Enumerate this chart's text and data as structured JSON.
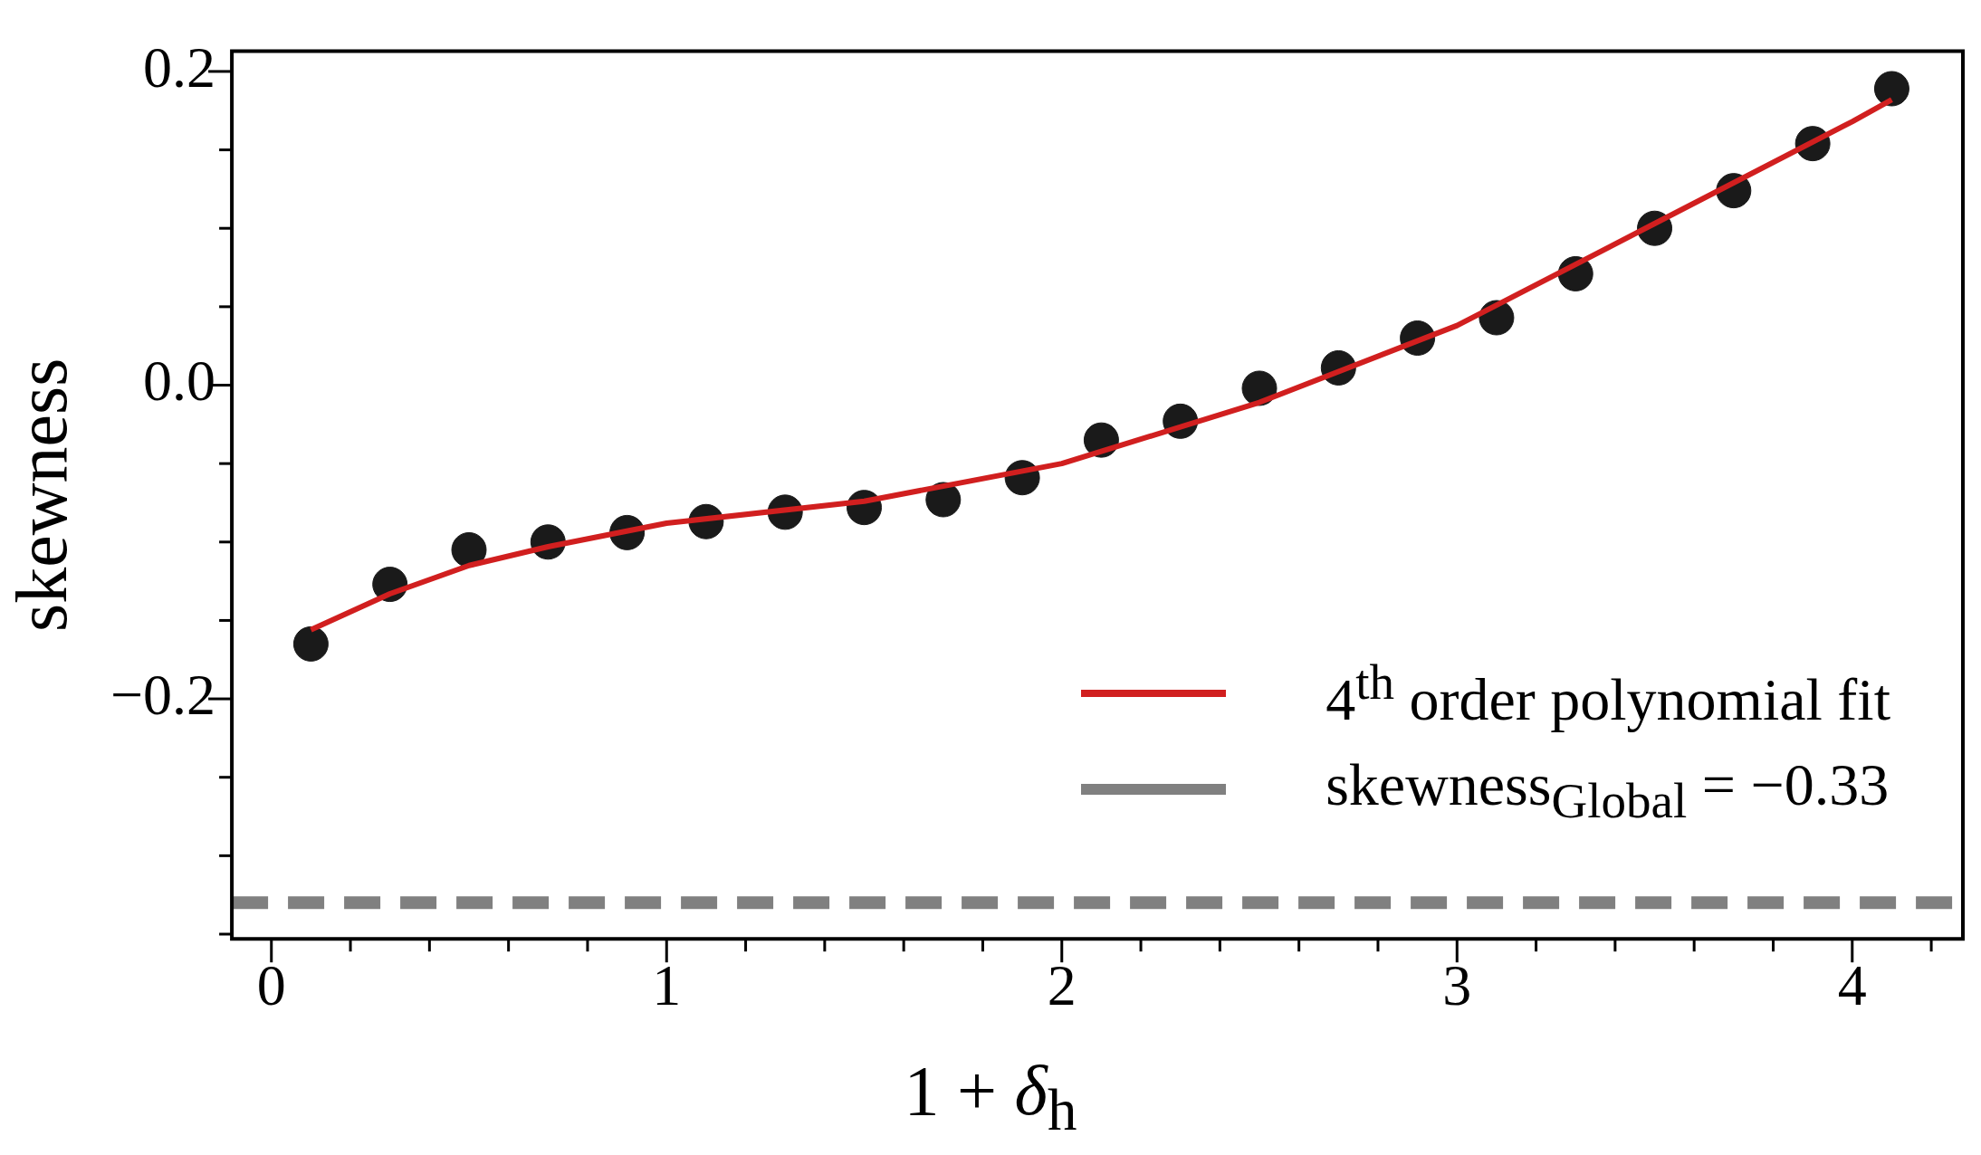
{
  "chart_data": {
    "type": "scatter",
    "xlabel": "1 + δ$_{h}$",
    "ylabel": "skewness",
    "xlim": [
      -0.1,
      4.28
    ],
    "ylim": [
      -0.353,
      0.213
    ],
    "xticks": [
      0,
      {
        "value": 0.2,
        "label": null
      },
      {
        "value": 0.4,
        "label": null
      },
      {
        "value": 0.6,
        "label": null
      },
      {
        "value": 0.8,
        "label": null
      },
      1,
      {
        "value": 1.2,
        "label": null
      },
      {
        "value": 1.4,
        "label": null
      },
      {
        "value": 1.6,
        "label": null
      },
      {
        "value": 1.8,
        "label": null
      },
      2,
      {
        "value": 2.2,
        "label": null
      },
      {
        "value": 2.4,
        "label": null
      },
      {
        "value": 2.6,
        "label": null
      },
      {
        "value": 2.8,
        "label": null
      },
      3,
      {
        "value": 3.2,
        "label": null
      },
      {
        "value": 3.4,
        "label": null
      },
      {
        "value": 3.6,
        "label": null
      },
      {
        "value": 3.8,
        "label": null
      },
      4,
      {
        "value": 4.2,
        "label": null
      }
    ],
    "yticks": [
      {
        "value": -0.35,
        "label": null
      },
      {
        "value": -0.3,
        "label": null
      },
      {
        "value": -0.25,
        "label": null
      },
      {
        "value": -0.2,
        "label": "−0.2"
      },
      {
        "value": -0.15,
        "label": null
      },
      {
        "value": -0.1,
        "label": null
      },
      {
        "value": -0.05,
        "label": null
      },
      {
        "value": 0,
        "label": "0.0"
      },
      {
        "value": 0.05,
        "label": null
      },
      {
        "value": 0.1,
        "label": null
      },
      {
        "value": 0.15,
        "label": null
      },
      {
        "value": 0.2,
        "label": "0.2"
      }
    ],
    "marker": "circle",
    "grid": false,
    "legend": "bottom right",
    "series": [
      {
        "color": "#1a1a1a",
        "x": [
          0.1,
          0.3,
          0.5,
          0.7,
          0.9,
          1.1,
          1.3,
          1.5,
          1.7,
          1.9,
          2.1,
          2.3,
          2.5,
          2.7,
          2.9,
          3.1,
          3.3,
          3.5,
          3.7,
          3.9,
          4.1
        ],
        "values": [
          -0.165,
          -0.127,
          -0.105,
          -0.1,
          -0.094,
          -0.087,
          -0.081,
          -0.078,
          -0.073,
          -0.059,
          -0.035,
          -0.023,
          -0.002,
          0.011,
          0.03,
          0.043,
          0.071,
          0.1,
          0.124,
          0.154,
          0.189
        ]
      },
      {
        "type": "line",
        "name": "4$^{th}$ order polynomial fit",
        "color": "#d11f1f",
        "marker": "none",
        "x": [
          0.1,
          0.3,
          0.5,
          0.7,
          1.0,
          1.5,
          2.0,
          2.5,
          3.0,
          3.5,
          4.0,
          4.1
        ],
        "values": [
          -0.156,
          -0.133,
          -0.115,
          -0.103,
          -0.088,
          -0.074,
          -0.05,
          -0.011,
          0.038,
          0.103,
          0.168,
          0.182
        ]
      }
    ],
    "ref_lines": [
      {
        "axis": "y",
        "value": -0.33,
        "label": "skewness$_{Global}$ = −0.33",
        "color": "#808080",
        "line_style": "dashed"
      }
    ]
  }
}
